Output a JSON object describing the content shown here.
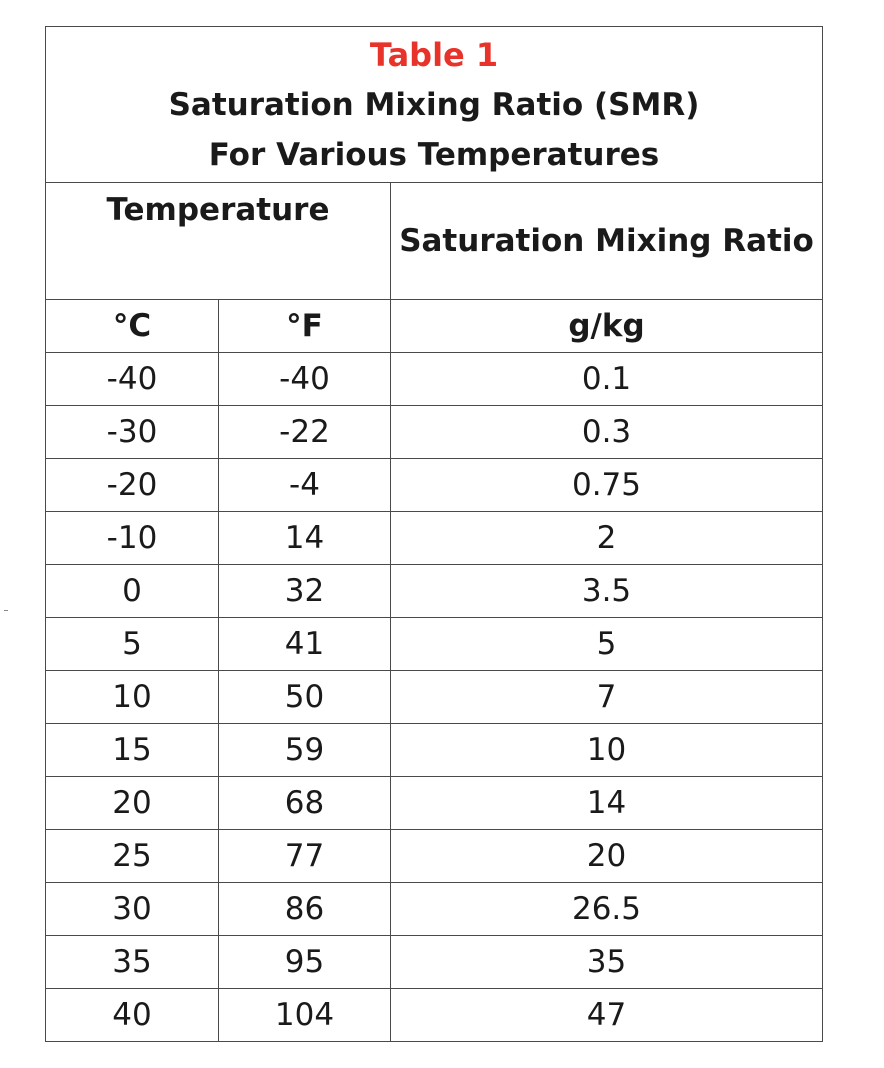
{
  "table": {
    "label": "Table 1",
    "title_line1": "Saturation Mixing Ratio (SMR)",
    "title_line2": "For Various Temperatures",
    "header_temperature": "Temperature",
    "header_smr": "Saturation Mixing Ratio",
    "unit_c": "°C",
    "unit_f": "°F",
    "unit_smr": "g/kg",
    "rows": [
      {
        "c": "-40",
        "f": "-40",
        "smr": "0.1"
      },
      {
        "c": "-30",
        "f": "-22",
        "smr": "0.3"
      },
      {
        "c": "-20",
        "f": "-4",
        "smr": "0.75"
      },
      {
        "c": "-10",
        "f": "14",
        "smr": "2"
      },
      {
        "c": "0",
        "f": "32",
        "smr": "3.5"
      },
      {
        "c": "5",
        "f": "41",
        "smr": "5"
      },
      {
        "c": "10",
        "f": "50",
        "smr": "7"
      },
      {
        "c": "15",
        "f": "59",
        "smr": "10"
      },
      {
        "c": "20",
        "f": "68",
        "smr": "14"
      },
      {
        "c": "25",
        "f": "77",
        "smr": "20"
      },
      {
        "c": "30",
        "f": "86",
        "smr": "26.5"
      },
      {
        "c": "35",
        "f": "95",
        "smr": "35"
      },
      {
        "c": "40",
        "f": "104",
        "smr": "47"
      }
    ]
  },
  "colors": {
    "label": "#e8332a",
    "text": "#1a1a1a",
    "border": "#4a4a4a"
  }
}
